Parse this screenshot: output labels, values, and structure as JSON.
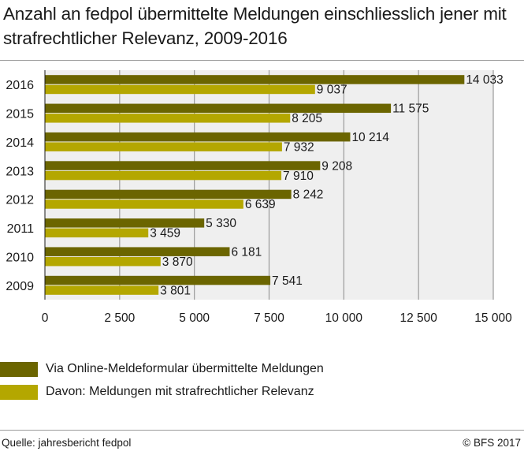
{
  "title": "Anzahl an fedpol übermittelte Meldungen einschliesslich jener mit strafrechtlicher Relevanz, 2009-2016",
  "colors": {
    "series1": "#6b6500",
    "series2": "#b4a700",
    "plot_bg": "#efefef",
    "grid": "#9a9a9a"
  },
  "chart_data": {
    "type": "bar",
    "orientation": "horizontal",
    "categories": [
      "2016",
      "2015",
      "2014",
      "2013",
      "2012",
      "2011",
      "2010",
      "2009"
    ],
    "series": [
      {
        "name": "Via Online-Meldeformular übermittelte Meldungen",
        "values": [
          14033,
          11575,
          10214,
          9208,
          8242,
          5330,
          6181,
          7541
        ],
        "labels": [
          "14 033",
          "11 575",
          "10 214",
          "9 208",
          "8 242",
          "5 330",
          "6 181",
          "7 541"
        ]
      },
      {
        "name": "Davon: Meldungen mit strafrechtlicher Relevanz",
        "values": [
          9037,
          8205,
          7932,
          7910,
          6639,
          3459,
          3870,
          3801
        ],
        "labels": [
          "9 037",
          "8 205",
          "7 932",
          "7 910",
          "6 639",
          "3 459",
          "3 870",
          "3 801"
        ]
      }
    ],
    "xlim": [
      0,
      15000
    ],
    "xticks": [
      0,
      2500,
      5000,
      7500,
      10000,
      12500,
      15000
    ],
    "xtick_labels": [
      "0",
      "2 500",
      "5 000",
      "7 500",
      "10 000",
      "12 500",
      "15 000"
    ],
    "grid": true,
    "legend_position": "bottom"
  },
  "legend": [
    {
      "label": "Via Online-Meldeformular übermittelte Meldungen"
    },
    {
      "label": "Davon: Meldungen mit strafrechtlicher Relevanz"
    }
  ],
  "footer": {
    "source": "Quelle: jahresbericht fedpol",
    "copyright": "© BFS 2017"
  }
}
